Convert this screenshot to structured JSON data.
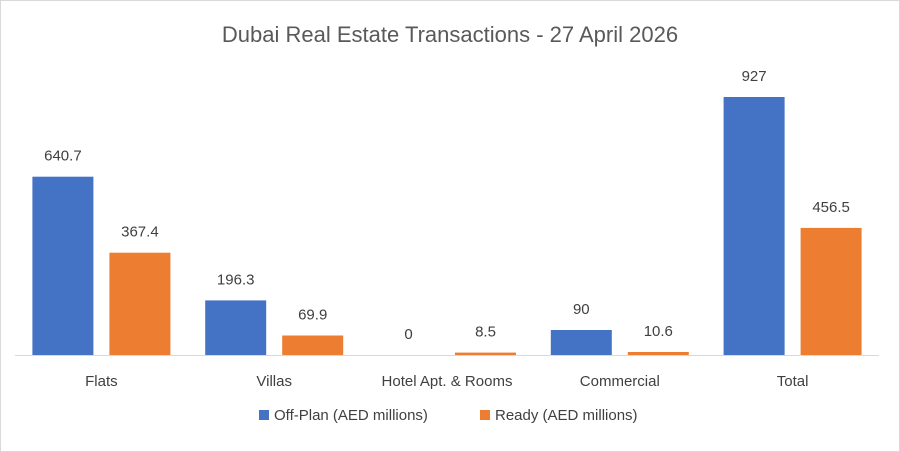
{
  "chart_data": {
    "type": "bar",
    "title": "Dubai Real Estate Transactions - 27 April 2026",
    "categories": [
      "Flats",
      "Villas",
      "Hotel Apt. & Rooms",
      "Commercial",
      "Total"
    ],
    "series": [
      {
        "name": "Off-Plan (AED millions)",
        "color": "#4472c4",
        "values": [
          640.7,
          196.3,
          0,
          90,
          927
        ],
        "labels": [
          "640.7",
          "196.3",
          "0",
          "90",
          "927"
        ]
      },
      {
        "name": "Ready (AED millions)",
        "color": "#ed7d31",
        "values": [
          367.4,
          69.9,
          8.5,
          10.6,
          456.5
        ],
        "labels": [
          "367.4",
          "69.9",
          "8.5",
          "10.6",
          "456.5"
        ]
      }
    ],
    "xlabel": "",
    "ylabel": "",
    "ylim": [
      0,
      927
    ],
    "grid": false,
    "legend": "bottom"
  }
}
